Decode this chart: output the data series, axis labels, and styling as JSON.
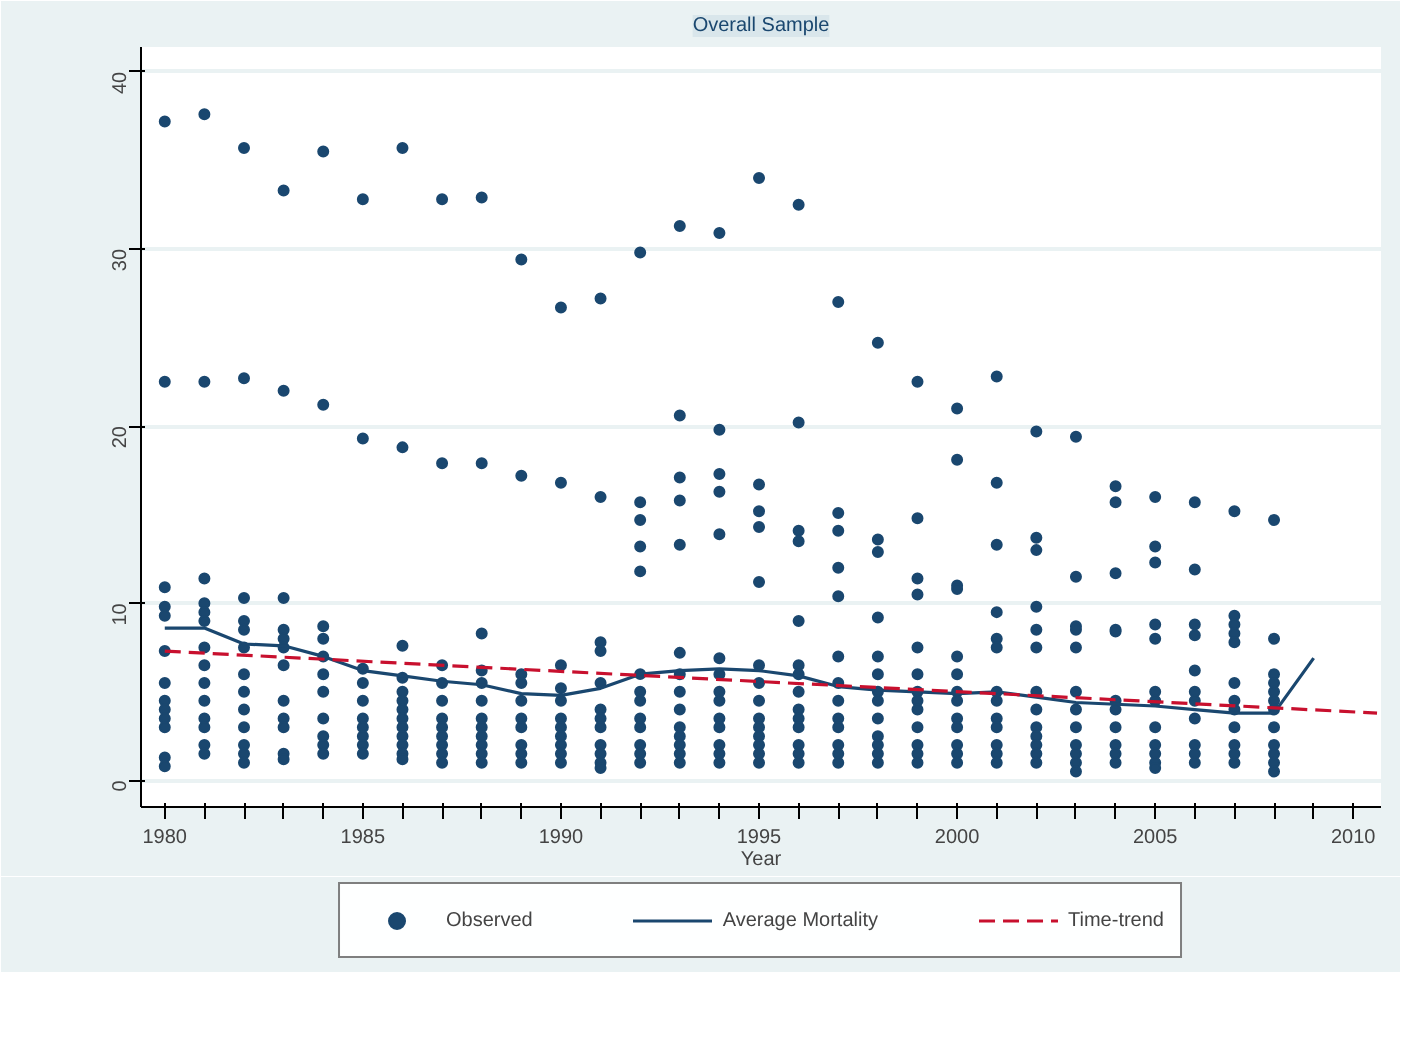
{
  "chart_data": {
    "type": "scatter",
    "title": "Overall Sample",
    "xlabel": "Year",
    "xlim": [
      1979.4,
      2010.7
    ],
    "ylim": [
      -1.5,
      41.4
    ],
    "xticks": [
      1980,
      {
        "value": 1981,
        "label": null
      },
      {
        "value": 1982,
        "label": null
      },
      {
        "value": 1983,
        "label": null
      },
      {
        "value": 1984,
        "label": null
      },
      1985,
      {
        "value": 1986,
        "label": null
      },
      {
        "value": 1987,
        "label": null
      },
      {
        "value": 1988,
        "label": null
      },
      {
        "value": 1989,
        "label": null
      },
      1990,
      {
        "value": 1991,
        "label": null
      },
      {
        "value": 1992,
        "label": null
      },
      {
        "value": 1993,
        "label": null
      },
      {
        "value": 1994,
        "label": null
      },
      1995,
      {
        "value": 1996,
        "label": null
      },
      {
        "value": 1997,
        "label": null
      },
      {
        "value": 1998,
        "label": null
      },
      {
        "value": 1999,
        "label": null
      },
      2000,
      {
        "value": 2001,
        "label": null
      },
      {
        "value": 2002,
        "label": null
      },
      {
        "value": 2003,
        "label": null
      },
      {
        "value": 2004,
        "label": null
      },
      2005,
      {
        "value": 2006,
        "label": null
      },
      {
        "value": 2007,
        "label": null
      },
      {
        "value": 2008,
        "label": null
      },
      {
        "value": 2009,
        "label": null
      },
      2010
    ],
    "yticks": [
      0,
      10,
      20,
      30,
      40
    ],
    "grid": "y",
    "legend": "bottom",
    "series": [
      {
        "name": "Observed",
        "marker": "circle",
        "color": "#1a476f",
        "x": [
          1980,
          1980,
          1980,
          1980,
          1980,
          1980,
          1980,
          1980,
          1980,
          1980,
          1980,
          1980,
          1980,
          1981,
          1981,
          1981,
          1981,
          1981,
          1981,
          1981,
          1981,
          1981,
          1981,
          1981,
          1981,
          1981,
          1981,
          1982,
          1982,
          1982,
          1982,
          1982,
          1982,
          1982,
          1982,
          1982,
          1982,
          1982,
          1982,
          1982,
          1983,
          1983,
          1983,
          1983,
          1983,
          1983,
          1983,
          1983,
          1983,
          1983,
          1983,
          1983,
          1984,
          1984,
          1984,
          1984,
          1984,
          1984,
          1984,
          1984,
          1984,
          1984,
          1984,
          1985,
          1985,
          1985,
          1985,
          1985,
          1985,
          1985,
          1985,
          1985,
          1985,
          1986,
          1986,
          1986,
          1986,
          1986,
          1986,
          1986,
          1986,
          1986,
          1986,
          1986,
          1986,
          1986,
          1987,
          1987,
          1987,
          1987,
          1987,
          1987,
          1987,
          1987,
          1987,
          1987,
          1987,
          1988,
          1988,
          1988,
          1988,
          1988,
          1988,
          1988,
          1988,
          1988,
          1988,
          1988,
          1988,
          1989,
          1989,
          1989,
          1989,
          1989,
          1989,
          1989,
          1989,
          1989,
          1989,
          1990,
          1990,
          1990,
          1990,
          1990,
          1990,
          1990,
          1990,
          1990,
          1990,
          1990,
          1991,
          1991,
          1991,
          1991,
          1991,
          1991,
          1991,
          1991,
          1991,
          1991,
          1991,
          1991,
          1992,
          1992,
          1992,
          1992,
          1992,
          1992,
          1992,
          1992,
          1992,
          1992,
          1992,
          1992,
          1992,
          1993,
          1993,
          1993,
          1993,
          1993,
          1993,
          1993,
          1993,
          1993,
          1993,
          1993,
          1993,
          1993,
          1993,
          1994,
          1994,
          1994,
          1994,
          1994,
          1994,
          1994,
          1994,
          1994,
          1994,
          1994,
          1994,
          1994,
          1994,
          1995,
          1995,
          1995,
          1995,
          1995,
          1995,
          1995,
          1995,
          1995,
          1995,
          1995,
          1995,
          1995,
          1995,
          1996,
          1996,
          1996,
          1996,
          1996,
          1996,
          1996,
          1996,
          1996,
          1996,
          1996,
          1996,
          1996,
          1996,
          1997,
          1997,
          1997,
          1997,
          1997,
          1997,
          1997,
          1997,
          1997,
          1997,
          1997,
          1997,
          1997,
          1998,
          1998,
          1998,
          1998,
          1998,
          1998,
          1998,
          1998,
          1998,
          1998,
          1998,
          1998,
          1998,
          1999,
          1999,
          1999,
          1999,
          1999,
          1999,
          1999,
          1999,
          1999,
          1999,
          1999,
          1999,
          1999,
          2000,
          2000,
          2000,
          2000,
          2000,
          2000,
          2000,
          2000,
          2000,
          2000,
          2000,
          2000,
          2000,
          2001,
          2001,
          2001,
          2001,
          2001,
          2001,
          2001,
          2001,
          2001,
          2001,
          2001,
          2001,
          2001,
          2002,
          2002,
          2002,
          2002,
          2002,
          2002,
          2002,
          2002,
          2002,
          2002,
          2002,
          2002,
          2002,
          2003,
          2003,
          2003,
          2003,
          2003,
          2003,
          2003,
          2003,
          2003,
          2003,
          2003,
          2003,
          2004,
          2004,
          2004,
          2004,
          2004,
          2004,
          2004,
          2004,
          2004,
          2004,
          2004,
          2005,
          2005,
          2005,
          2005,
          2005,
          2005,
          2005,
          2005,
          2005,
          2005,
          2005,
          2005,
          2006,
          2006,
          2006,
          2006,
          2006,
          2006,
          2006,
          2006,
          2006,
          2006,
          2006,
          2007,
          2007,
          2007,
          2007,
          2007,
          2007,
          2007,
          2007,
          2007,
          2007,
          2007,
          2007,
          2008,
          2008,
          2008,
          2008,
          2008,
          2008,
          2008,
          2008,
          2008,
          2008,
          2008,
          2008
        ],
        "values": [
          37.2,
          22.5,
          10.9,
          9.8,
          9.3,
          7.3,
          5.5,
          4.5,
          4,
          3.5,
          3,
          1.3,
          0.8,
          37.6,
          22.5,
          11.4,
          10,
          9.5,
          9,
          7.5,
          6.5,
          5.5,
          4.5,
          3.5,
          3,
          2,
          1.5,
          35.7,
          22.7,
          10.3,
          9,
          8.5,
          7.5,
          6,
          5,
          4,
          3,
          2,
          1.5,
          1,
          33.3,
          22,
          10.3,
          8.5,
          8,
          7.5,
          6.5,
          4.5,
          3.5,
          3,
          1.5,
          1.2,
          35.5,
          21.2,
          8.7,
          8,
          7,
          6,
          5,
          3.5,
          2.5,
          2,
          1.5,
          32.8,
          19.3,
          6.3,
          5.5,
          4.5,
          3.5,
          3,
          2.5,
          2,
          1.5,
          35.7,
          18.8,
          7.6,
          5.8,
          5,
          4.5,
          4,
          3.5,
          3,
          2.5,
          2,
          1.5,
          1.2,
          32.8,
          17.9,
          6.5,
          5.5,
          4.5,
          3.5,
          3,
          2.5,
          2,
          1.5,
          1,
          32.9,
          17.9,
          8.3,
          6.2,
          5.5,
          4.5,
          3.5,
          3,
          2.5,
          2,
          1.5,
          1,
          29.4,
          17.2,
          6,
          5.5,
          4.5,
          3.5,
          3,
          2,
          1.5,
          1,
          26.7,
          16.8,
          6.5,
          5.2,
          4.5,
          3.5,
          3,
          2.5,
          2,
          1.5,
          1,
          27.2,
          16,
          7.8,
          7.3,
          5.5,
          4,
          3.5,
          3,
          2,
          1.5,
          1,
          0.7,
          29.8,
          15.7,
          14.7,
          13.2,
          11.8,
          6,
          5,
          4.5,
          3.5,
          3,
          2,
          1.5,
          1,
          31.3,
          20.6,
          17.1,
          15.8,
          13.3,
          7.2,
          6,
          5,
          4,
          3,
          2.5,
          2,
          1.5,
          1,
          30.9,
          19.8,
          17.3,
          16.3,
          13.9,
          6.9,
          6,
          5,
          4.5,
          3.5,
          3,
          2,
          1.5,
          1,
          34,
          16.7,
          15.2,
          14.3,
          11.2,
          6.5,
          5.5,
          4.5,
          3.5,
          3,
          2.5,
          2,
          1.5,
          1,
          32.5,
          20.2,
          14.1,
          13.5,
          9,
          6.5,
          6,
          5,
          4,
          3.5,
          3,
          2,
          1.5,
          1,
          27,
          15.1,
          14.1,
          12,
          10.4,
          7,
          5.5,
          4.5,
          3.5,
          3,
          2,
          1.5,
          1,
          24.7,
          13.6,
          12.9,
          9.2,
          7,
          6,
          5,
          4.5,
          3.5,
          2.5,
          2,
          1.5,
          1,
          22.5,
          14.8,
          11.4,
          10.5,
          7.5,
          6,
          5,
          4.5,
          4,
          3,
          2,
          1.5,
          1,
          21,
          18.1,
          11,
          10.8,
          7,
          6,
          5,
          4.5,
          3.5,
          3,
          2,
          1.5,
          1,
          22.8,
          16.8,
          13.3,
          9.5,
          8,
          7.5,
          5,
          4.5,
          3.5,
          3,
          2,
          1.5,
          1,
          19.7,
          13.7,
          13,
          9.8,
          8.5,
          7.5,
          5,
          4,
          3,
          2.5,
          2,
          1.5,
          1,
          19.4,
          11.5,
          8.7,
          8.5,
          7.5,
          5,
          4,
          3,
          2,
          1.5,
          1,
          0.5,
          16.6,
          15.7,
          11.7,
          8.5,
          8.4,
          4.5,
          4,
          3,
          2,
          1.5,
          1,
          16,
          13.2,
          12.3,
          8.8,
          8,
          5,
          4.5,
          3,
          2,
          1.5,
          1,
          0.7,
          15.7,
          11.9,
          8.8,
          8.2,
          6.2,
          5,
          4.5,
          3.5,
          2,
          1.5,
          1,
          15.2,
          9.3,
          8.8,
          8.3,
          7.8,
          5.5,
          4.5,
          4,
          3,
          2,
          1.5,
          1,
          14.7,
          8,
          6,
          5.5,
          5,
          4.5,
          4,
          3,
          2,
          1.5,
          1,
          0.5
        ]
      },
      {
        "name": "Average Mortality",
        "type": "line",
        "line_style": "solid",
        "color": "#1a476f",
        "x": [
          1980,
          1981,
          1982,
          1983,
          1984,
          1985,
          1986,
          1987,
          1988,
          1989,
          1990,
          1991,
          1992,
          1993,
          1994,
          1995,
          1996,
          1997,
          1998,
          1999,
          2000,
          2001,
          2002,
          2003,
          2004,
          2005,
          2006,
          2007,
          2008,
          2009
        ],
        "values": [
          8.6,
          8.6,
          7.7,
          7.6,
          7.0,
          6.2,
          5.9,
          5.6,
          5.4,
          4.9,
          4.8,
          5.2,
          6.0,
          6.2,
          6.3,
          6.2,
          5.9,
          5.3,
          5.1,
          5.0,
          4.9,
          5.0,
          4.7,
          4.4,
          4.3,
          4.2,
          4.0,
          3.8,
          3.8,
          6.9
        ]
      },
      {
        "name": "Time-trend",
        "type": "line",
        "line_style": "dashed",
        "color": "#c8102e",
        "x": [
          1980,
          2010.6
        ],
        "values": [
          7.3,
          3.8
        ]
      }
    ]
  }
}
